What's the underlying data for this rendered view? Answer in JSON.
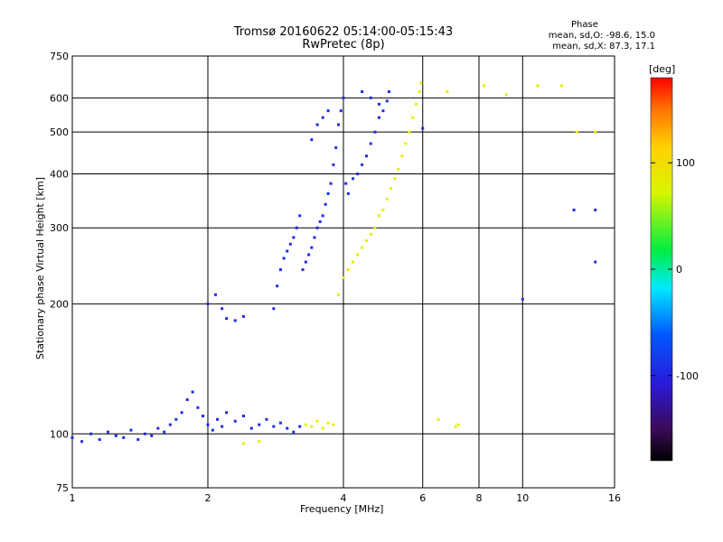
{
  "chart_data": {
    "type": "scatter",
    "title": "Tromsø 20160622 05:14:00-05:15:43",
    "subtitle": "RwPretec (8p)",
    "xlabel": "Frequency [MHz]",
    "ylabel": "Stationary phase Virtual Height [km]",
    "xscale": "log",
    "yscale": "log",
    "xlim": [
      1,
      16
    ],
    "ylim": [
      75,
      750
    ],
    "xticks": [
      1,
      2,
      4,
      6,
      8,
      10,
      16
    ],
    "xtick_labels": [
      "1",
      "2",
      "4",
      "6",
      "8",
      "10",
      "16"
    ],
    "yticks": [
      75,
      100,
      200,
      300,
      400,
      500,
      600,
      750
    ],
    "ytick_labels": [
      "75",
      "100",
      "200",
      "300",
      "400",
      "500",
      "600",
      "750"
    ],
    "grid": true,
    "stats": {
      "heading": "Phase",
      "line_o": "mean, sd,O: -98.6, 15.0",
      "line_x": "mean, sd,X:  87.3, 17.1"
    },
    "colorbar": {
      "label": "[deg]",
      "range": [
        -180,
        180
      ],
      "ticks": [
        100,
        0,
        -100
      ],
      "tick_labels": [
        "100",
        "0",
        "-100"
      ]
    },
    "series": [
      {
        "name": "O",
        "phase_deg": -98.6,
        "color": "#1e2ee6",
        "points": [
          [
            1.0,
            98
          ],
          [
            1.05,
            96
          ],
          [
            1.1,
            100
          ],
          [
            1.15,
            97
          ],
          [
            1.2,
            101
          ],
          [
            1.25,
            99
          ],
          [
            1.3,
            98
          ],
          [
            1.35,
            102
          ],
          [
            1.4,
            97
          ],
          [
            1.45,
            100
          ],
          [
            1.5,
            99
          ],
          [
            1.55,
            103
          ],
          [
            1.6,
            101
          ],
          [
            1.65,
            105
          ],
          [
            1.7,
            108
          ],
          [
            1.75,
            112
          ],
          [
            1.8,
            120
          ],
          [
            1.85,
            125
          ],
          [
            1.9,
            115
          ],
          [
            1.95,
            110
          ],
          [
            2.0,
            105
          ],
          [
            2.05,
            102
          ],
          [
            2.1,
            108
          ],
          [
            2.15,
            104
          ],
          [
            2.2,
            112
          ],
          [
            2.3,
            107
          ],
          [
            2.4,
            110
          ],
          [
            2.5,
            103
          ],
          [
            2.6,
            105
          ],
          [
            2.7,
            108
          ],
          [
            2.8,
            104
          ],
          [
            2.9,
            106
          ],
          [
            3.0,
            103
          ],
          [
            3.1,
            101
          ],
          [
            3.2,
            104
          ],
          [
            2.0,
            200
          ],
          [
            2.08,
            210
          ],
          [
            2.15,
            195
          ],
          [
            2.2,
            185
          ],
          [
            2.3,
            183
          ],
          [
            2.4,
            187
          ],
          [
            2.8,
            195
          ],
          [
            2.85,
            220
          ],
          [
            2.9,
            240
          ],
          [
            2.95,
            255
          ],
          [
            3.0,
            265
          ],
          [
            3.05,
            275
          ],
          [
            3.1,
            285
          ],
          [
            3.15,
            300
          ],
          [
            3.2,
            320
          ],
          [
            3.25,
            240
          ],
          [
            3.3,
            250
          ],
          [
            3.35,
            260
          ],
          [
            3.4,
            270
          ],
          [
            3.45,
            285
          ],
          [
            3.5,
            300
          ],
          [
            3.55,
            310
          ],
          [
            3.6,
            320
          ],
          [
            3.65,
            340
          ],
          [
            3.7,
            360
          ],
          [
            3.75,
            380
          ],
          [
            3.8,
            420
          ],
          [
            3.85,
            460
          ],
          [
            3.9,
            520
          ],
          [
            3.95,
            560
          ],
          [
            4.0,
            600
          ],
          [
            4.05,
            380
          ],
          [
            4.1,
            360
          ],
          [
            4.2,
            390
          ],
          [
            4.3,
            400
          ],
          [
            4.4,
            420
          ],
          [
            4.5,
            440
          ],
          [
            4.6,
            470
          ],
          [
            4.7,
            500
          ],
          [
            4.8,
            540
          ],
          [
            4.9,
            560
          ],
          [
            5.0,
            590
          ],
          [
            5.05,
            620
          ],
          [
            4.4,
            620
          ],
          [
            4.6,
            600
          ],
          [
            4.8,
            580
          ],
          [
            3.4,
            480
          ],
          [
            3.5,
            520
          ],
          [
            3.6,
            540
          ],
          [
            3.7,
            560
          ],
          [
            6.0,
            510
          ],
          [
            10.0,
            205
          ],
          [
            13.0,
            330
          ],
          [
            14.5,
            330
          ],
          [
            14.5,
            250
          ]
        ]
      },
      {
        "name": "X",
        "phase_deg": 87.3,
        "color": "#e8f000",
        "points": [
          [
            3.3,
            105
          ],
          [
            3.4,
            104
          ],
          [
            3.5,
            107
          ],
          [
            3.6,
            103
          ],
          [
            3.7,
            106
          ],
          [
            3.8,
            105
          ],
          [
            3.9,
            210
          ],
          [
            4.0,
            230
          ],
          [
            4.1,
            240
          ],
          [
            4.2,
            250
          ],
          [
            4.3,
            260
          ],
          [
            4.4,
            270
          ],
          [
            4.5,
            280
          ],
          [
            4.6,
            290
          ],
          [
            4.7,
            300
          ],
          [
            4.8,
            320
          ],
          [
            4.9,
            330
          ],
          [
            5.0,
            350
          ],
          [
            5.1,
            370
          ],
          [
            5.2,
            390
          ],
          [
            5.3,
            410
          ],
          [
            5.4,
            440
          ],
          [
            5.5,
            470
          ],
          [
            5.6,
            500
          ],
          [
            5.7,
            540
          ],
          [
            5.8,
            580
          ],
          [
            5.9,
            620
          ],
          [
            5.95,
            650
          ],
          [
            6.5,
            108
          ],
          [
            7.1,
            104
          ],
          [
            7.2,
            105
          ],
          [
            6.8,
            620
          ],
          [
            8.2,
            640
          ],
          [
            9.2,
            610
          ],
          [
            10.8,
            640
          ],
          [
            12.2,
            640
          ],
          [
            13.2,
            500
          ],
          [
            14.5,
            500
          ],
          [
            2.4,
            95
          ],
          [
            2.6,
            96
          ]
        ]
      }
    ]
  }
}
